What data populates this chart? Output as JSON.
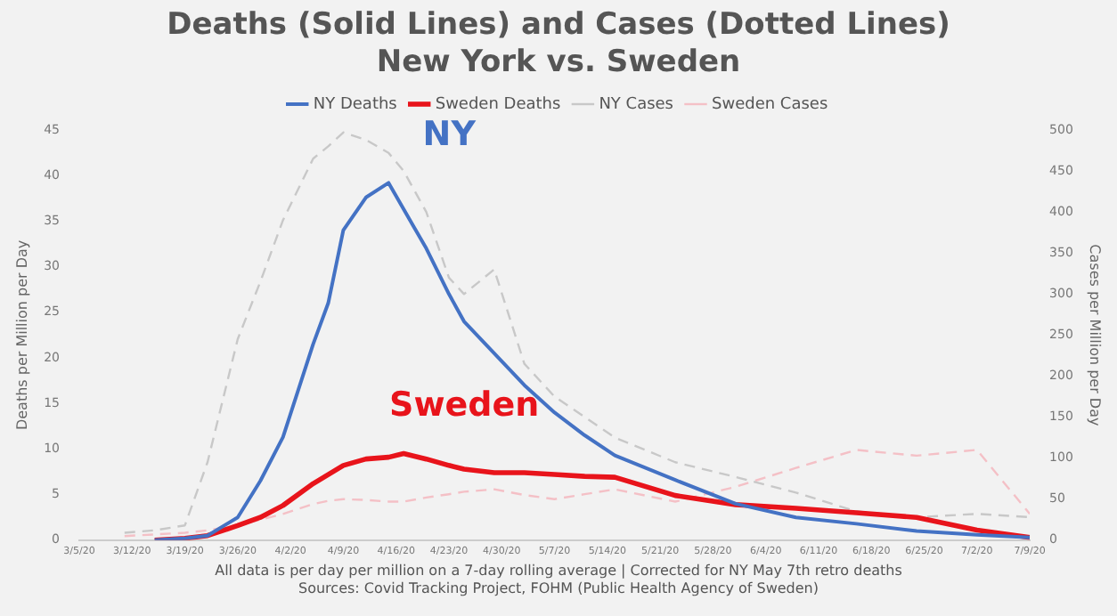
{
  "chart_data": {
    "type": "line",
    "title": "Deaths (Solid Lines) and Cases (Dotted Lines)",
    "subtitle": "New York vs. Sweden",
    "ylabel": "Deaths per Million per Day",
    "y2label": "Cases per Million per Day",
    "x": [
      "--03-11",
      "--03-15",
      "--03-19",
      "--03-22",
      "--03-26",
      "--03-29",
      "--04-01",
      "--04-05",
      "--04-07",
      "--04-09",
      "--04-12",
      "--04-15",
      "--04-17",
      "--04-20",
      "--04-23",
      "--04-25",
      "--04-29",
      "--05-03",
      "--05-07",
      "--05-11",
      "--05-15",
      "--05-23",
      "--05-31",
      "--06-08",
      "--06-16",
      "--06-24",
      "--07-02",
      "--07-09"
    ],
    "series": [
      {
        "name": "NY Deaths",
        "color": "#4472c4",
        "line_style": "solid",
        "values": [
          null,
          0,
          0.2,
          0.5,
          2.5,
          6.5,
          11.3,
          21.5,
          26,
          34,
          37.6,
          39.2,
          36.3,
          32,
          27,
          24,
          20.5,
          17,
          14,
          11.5,
          9.3,
          6.6,
          4,
          2.5,
          1.8,
          1,
          0.6,
          0.3
        ]
      },
      {
        "name": "Sweden Deaths",
        "color": "#e8141b",
        "line_style": "solid",
        "values": [
          null,
          0,
          0.2,
          0.5,
          1.6,
          2.5,
          3.8,
          6.2,
          7.2,
          8.2,
          8.9,
          9.1,
          9.5,
          8.9,
          8.2,
          7.8,
          7.4,
          7.4,
          7.2,
          7,
          6.9,
          4.9,
          3.9,
          3.5,
          3,
          2.5,
          1.1,
          0.3
        ]
      },
      {
        "name": "NY Cases",
        "color": "#c8c8c8",
        "line_style": "dashed",
        "axis": "y2",
        "values": [
          9,
          12,
          18,
          95,
          245,
          315,
          390,
          465,
          480,
          497,
          488,
          472,
          450,
          400,
          320,
          300,
          330,
          215,
          175,
          150,
          125,
          95,
          77,
          58,
          35,
          28,
          32,
          28
        ]
      },
      {
        "name": "Sweden Cases",
        "color": "#f4c0c6",
        "line_style": "dashed",
        "axis": "y2",
        "values": [
          5,
          7,
          9,
          12,
          18,
          25,
          32,
          44,
          48,
          50,
          49,
          47,
          47,
          52,
          56,
          59,
          62,
          55,
          50,
          56,
          62,
          47,
          65,
          88,
          110,
          103,
          110,
          32
        ]
      }
    ],
    "xlim": [
      "--03-05",
      "--07-09"
    ],
    "xticks": [
      {
        "value": "--03-05",
        "label": "3/5/20"
      },
      {
        "value": "--03-12",
        "label": "3/12/20"
      },
      {
        "value": "--03-19",
        "label": "3/19/20"
      },
      {
        "value": "--03-26",
        "label": "3/26/20"
      },
      {
        "value": "--04-02",
        "label": "4/2/20"
      },
      {
        "value": "--04-09",
        "label": "4/9/20"
      },
      {
        "value": "--04-16",
        "label": "4/16/20"
      },
      {
        "value": "--04-23",
        "label": "4/23/20"
      },
      {
        "value": "--04-30",
        "label": "4/30/20"
      },
      {
        "value": "--05-07",
        "label": "5/7/20"
      },
      {
        "value": "--05-14",
        "label": "5/14/20"
      },
      {
        "value": "--05-21",
        "label": "5/21/20"
      },
      {
        "value": "--05-28",
        "label": "5/28/20"
      },
      {
        "value": "--06-04",
        "label": "6/4/20"
      },
      {
        "value": "--06-11",
        "label": "6/11/20"
      },
      {
        "value": "--06-18",
        "label": "6/18/20"
      },
      {
        "value": "--06-25",
        "label": "6/25/20"
      },
      {
        "value": "--07-02",
        "label": "7/2/20"
      },
      {
        "value": "--07-09",
        "label": "7/9/20"
      }
    ],
    "ylim": [
      0,
      45
    ],
    "yticks": [
      0,
      5,
      10,
      15,
      20,
      25,
      30,
      35,
      40,
      45
    ],
    "y2lim": [
      0,
      500
    ],
    "y2ticks": [
      0,
      50,
      100,
      150,
      200,
      250,
      300,
      350,
      400,
      450,
      500
    ],
    "grid": false,
    "legend": "top",
    "marker": "none",
    "annotations": [
      "NY",
      "Sweden",
      "All data is per day per million on a 7-day rolling average | Corrected for NY May 7th retro deaths",
      "Sources: Covid Tracking Project, FOHM (Public Health Agency of Sweden)"
    ]
  }
}
